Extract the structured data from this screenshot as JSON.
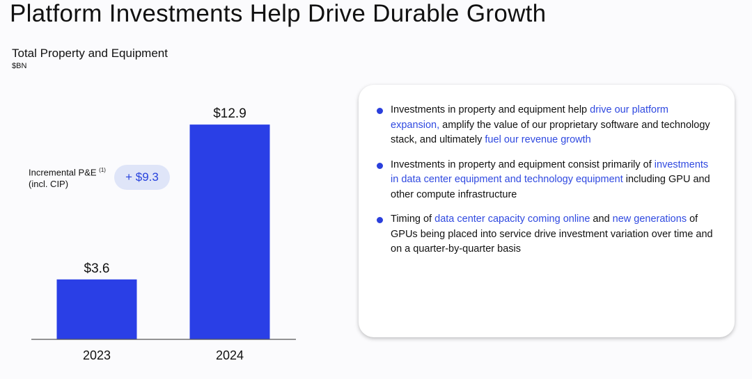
{
  "page": {
    "title": "Platform Investments Help Drive Durable Growth"
  },
  "chart_data": {
    "type": "bar",
    "title": "Total Property and Equipment",
    "unit": "$BN",
    "categories": [
      "2023",
      "2024"
    ],
    "values": [
      3.6,
      12.9
    ],
    "value_labels": [
      "$3.6",
      "$12.9"
    ],
    "bar_color": "#2a3fe6",
    "ylim": [
      0,
      14.2
    ],
    "grid": false,
    "annotation": {
      "label_line1": "Incremental P&E",
      "footnote": "(1)",
      "label_line2": "(incl. CIP)",
      "value": "+ $9.3"
    }
  },
  "bullets": [
    {
      "parts": [
        {
          "text": "Investments in property and equipment help ",
          "hl": false
        },
        {
          "text": "drive our platform expansion,",
          "hl": true
        },
        {
          "text": " amplify the value of our proprietary software and technology stack, and ultimately ",
          "hl": false
        },
        {
          "text": "fuel our revenue growth",
          "hl": true
        }
      ]
    },
    {
      "parts": [
        {
          "text": "Investments in property and equipment consist primarily of ",
          "hl": false
        },
        {
          "text": "investments in data center equipment and technology equipment",
          "hl": true
        },
        {
          "text": " including GPU and other compute infrastructure",
          "hl": false
        }
      ]
    },
    {
      "parts": [
        {
          "text": "Timing of ",
          "hl": false
        },
        {
          "text": "data center capacity coming online",
          "hl": true
        },
        {
          "text": " and ",
          "hl": false
        },
        {
          "text": "new generations",
          "hl": true
        },
        {
          "text": " of GPUs being placed into service drive investment variation over time and on a quarter-by-quarter basis",
          "hl": false
        }
      ]
    }
  ]
}
